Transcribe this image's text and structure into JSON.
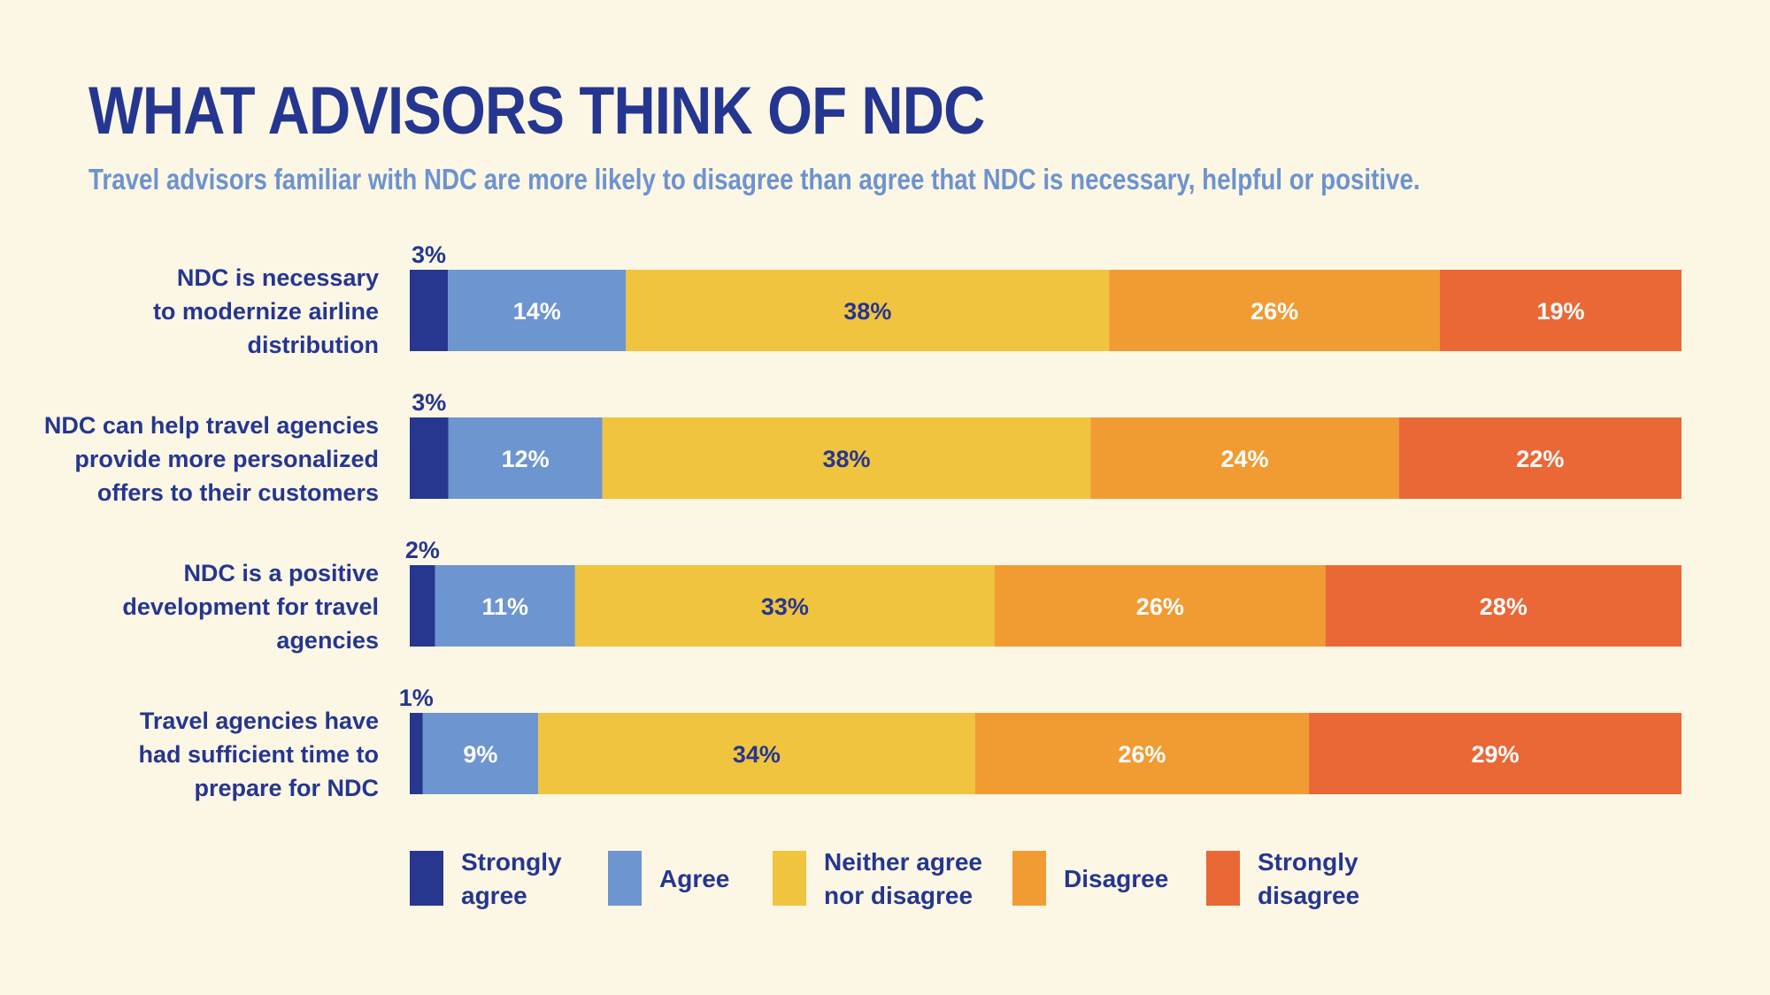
{
  "title": "WHAT ADVISORS THINK OF NDC",
  "subtitle": "Travel advisors familiar with NDC are more likely to disagree than agree that NDC is necessary, helpful or positive.",
  "chart_data": {
    "type": "bar",
    "orientation": "horizontal",
    "stacked": true,
    "title": "WHAT ADVISORS THINK OF NDC",
    "subtitle": "Travel advisors familiar with NDC are more likely to disagree than agree that NDC is necessary, helpful or positive.",
    "categories": [
      [
        "NDC is necessary",
        "to modernize airline",
        "distribution"
      ],
      [
        "NDC can help travel agencies",
        "provide more personalized",
        "offers to their customers"
      ],
      [
        "NDC is a positive",
        "development for travel",
        "agencies"
      ],
      [
        "Travel agencies have",
        "had sufficient time to",
        "prepare for NDC"
      ]
    ],
    "series": [
      {
        "name": "Strongly agree",
        "legend": [
          "Strongly",
          "agree"
        ],
        "color": "#27368f",
        "label_color": "#ffffff",
        "values": [
          3,
          3,
          2,
          1
        ]
      },
      {
        "name": "Agree",
        "legend": [
          "Agree"
        ],
        "color": "#6d95d0",
        "label_color": "#ffffff",
        "values": [
          14,
          12,
          11,
          9
        ]
      },
      {
        "name": "Neither agree nor disagree",
        "legend": [
          "Neither agree",
          "nor disagree"
        ],
        "color": "#f0c43e",
        "label_color": "#253690",
        "values": [
          38,
          38,
          33,
          34
        ]
      },
      {
        "name": "Disagree",
        "legend": [
          "Disagree"
        ],
        "color": "#f19b33",
        "label_color": "#ffffff",
        "values": [
          26,
          24,
          26,
          26
        ]
      },
      {
        "name": "Strongly disagree",
        "legend": [
          "Strongly",
          "disagree"
        ],
        "color": "#e96836",
        "label_color": "#ffffff",
        "values": [
          19,
          22,
          28,
          29
        ]
      }
    ],
    "value_suffix": "%",
    "legend_position": "bottom",
    "grid": false
  }
}
